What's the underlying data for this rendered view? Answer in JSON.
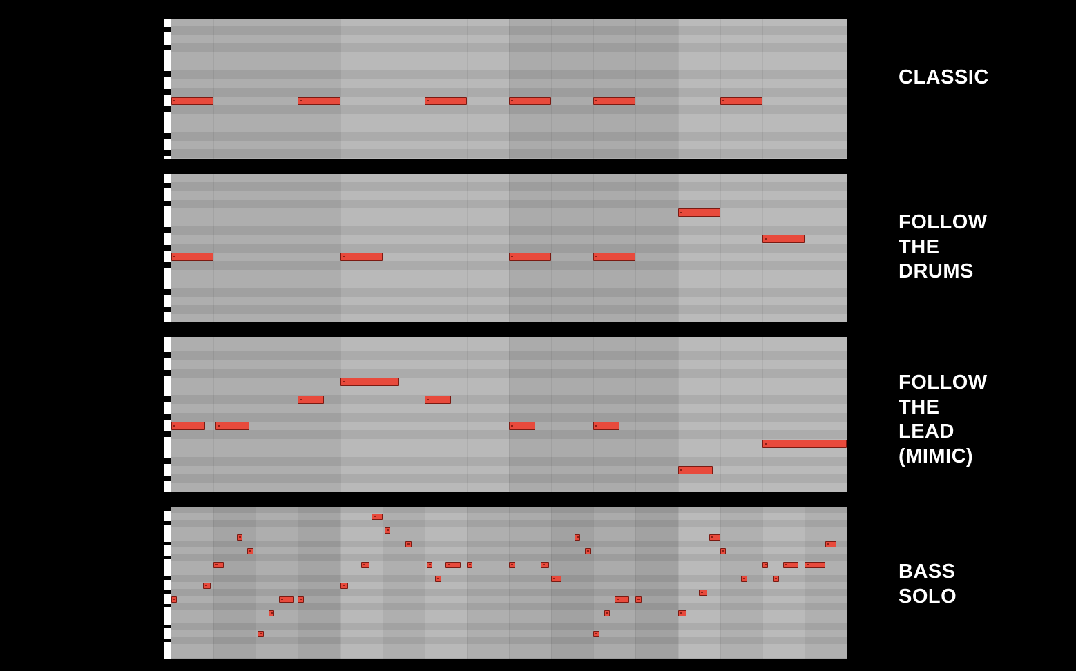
{
  "panels": [
    {
      "id": "classic",
      "label_lines": [
        "CLASSIC"
      ],
      "notes": [
        {
          "start": 0,
          "length": 1,
          "pitch": 0
        },
        {
          "start": 3,
          "length": 1,
          "pitch": 0
        },
        {
          "start": 6,
          "length": 1,
          "pitch": 0
        },
        {
          "start": 8,
          "length": 1,
          "pitch": 0
        },
        {
          "start": 10,
          "length": 1,
          "pitch": 0
        },
        {
          "start": 13,
          "length": 1,
          "pitch": 0
        }
      ]
    },
    {
      "id": "follow-the-drums",
      "label_lines": [
        "FOLLOW",
        "THE",
        "DRUMS"
      ],
      "notes": [
        {
          "start": 0,
          "length": 1,
          "pitch": 0
        },
        {
          "start": 4,
          "length": 1,
          "pitch": 0
        },
        {
          "start": 8,
          "length": 1,
          "pitch": 0
        },
        {
          "start": 10,
          "length": 1,
          "pitch": 0
        },
        {
          "start": 12,
          "length": 1,
          "pitch": 5
        },
        {
          "start": 14,
          "length": 1,
          "pitch": 2
        }
      ]
    },
    {
      "id": "follow-the-lead",
      "label_lines": [
        "FOLLOW",
        "THE",
        "LEAD",
        "(MIMIC)"
      ],
      "notes": [
        {
          "start": 0,
          "length": 0.8,
          "pitch": 0
        },
        {
          "start": 1.05,
          "length": 0.8,
          "pitch": 0
        },
        {
          "start": 3,
          "length": 0.62,
          "pitch": 3
        },
        {
          "start": 4,
          "length": 1.4,
          "pitch": 5
        },
        {
          "start": 6,
          "length": 0.62,
          "pitch": 3
        },
        {
          "start": 8,
          "length": 0.62,
          "pitch": 0
        },
        {
          "start": 10,
          "length": 0.62,
          "pitch": 0
        },
        {
          "start": 12,
          "length": 0.82,
          "pitch": -5
        },
        {
          "start": 14,
          "length": 2,
          "pitch": -2
        }
      ]
    },
    {
      "id": "bass-solo",
      "label_lines": [
        "BASS",
        "SOLO"
      ],
      "notes": [
        {
          "start": 0,
          "length": 0.12,
          "pitch": 0
        },
        {
          "start": 0.75,
          "length": 0.18,
          "pitch": 2
        },
        {
          "start": 1,
          "length": 0.25,
          "pitch": 5
        },
        {
          "start": 1.55,
          "length": 0.14,
          "pitch": 9
        },
        {
          "start": 1.8,
          "length": 0.14,
          "pitch": 7
        },
        {
          "start": 2.05,
          "length": 0.14,
          "pitch": -5
        },
        {
          "start": 2.3,
          "length": 0.14,
          "pitch": -2
        },
        {
          "start": 2.55,
          "length": 0.35,
          "pitch": 0
        },
        {
          "start": 3,
          "length": 0.14,
          "pitch": 0
        },
        {
          "start": 4,
          "length": 0.18,
          "pitch": 2
        },
        {
          "start": 4.5,
          "length": 0.2,
          "pitch": 5
        },
        {
          "start": 4.75,
          "length": 0.25,
          "pitch": 12
        },
        {
          "start": 5.05,
          "length": 0.14,
          "pitch": 10
        },
        {
          "start": 5.55,
          "length": 0.14,
          "pitch": 8
        },
        {
          "start": 6.05,
          "length": 0.14,
          "pitch": 5
        },
        {
          "start": 6.25,
          "length": 0.14,
          "pitch": 3
        },
        {
          "start": 6.5,
          "length": 0.35,
          "pitch": 5
        },
        {
          "start": 7,
          "length": 0.14,
          "pitch": 5
        },
        {
          "start": 8,
          "length": 0.14,
          "pitch": 5
        },
        {
          "start": 8.75,
          "length": 0.2,
          "pitch": 5
        },
        {
          "start": 9,
          "length": 0.25,
          "pitch": 3
        },
        {
          "start": 9.55,
          "length": 0.14,
          "pitch": 9
        },
        {
          "start": 9.8,
          "length": 0.14,
          "pitch": 7
        },
        {
          "start": 10,
          "length": 0.14,
          "pitch": -5
        },
        {
          "start": 10.25,
          "length": 0.14,
          "pitch": -2
        },
        {
          "start": 10.5,
          "length": 0.35,
          "pitch": 0
        },
        {
          "start": 11,
          "length": 0.14,
          "pitch": 0
        },
        {
          "start": 12,
          "length": 0.2,
          "pitch": -2
        },
        {
          "start": 12.5,
          "length": 0.2,
          "pitch": 1
        },
        {
          "start": 12.75,
          "length": 0.25,
          "pitch": 9
        },
        {
          "start": 13,
          "length": 0.14,
          "pitch": 7
        },
        {
          "start": 13.5,
          "length": 0.14,
          "pitch": 3
        },
        {
          "start": 14,
          "length": 0.14,
          "pitch": 5
        },
        {
          "start": 14.25,
          "length": 0.14,
          "pitch": 3
        },
        {
          "start": 14.5,
          "length": 0.35,
          "pitch": 5
        },
        {
          "start": 15,
          "length": 0.5,
          "pitch": 5
        },
        {
          "start": 15.5,
          "length": 0.25,
          "pitch": 8
        }
      ]
    }
  ]
}
